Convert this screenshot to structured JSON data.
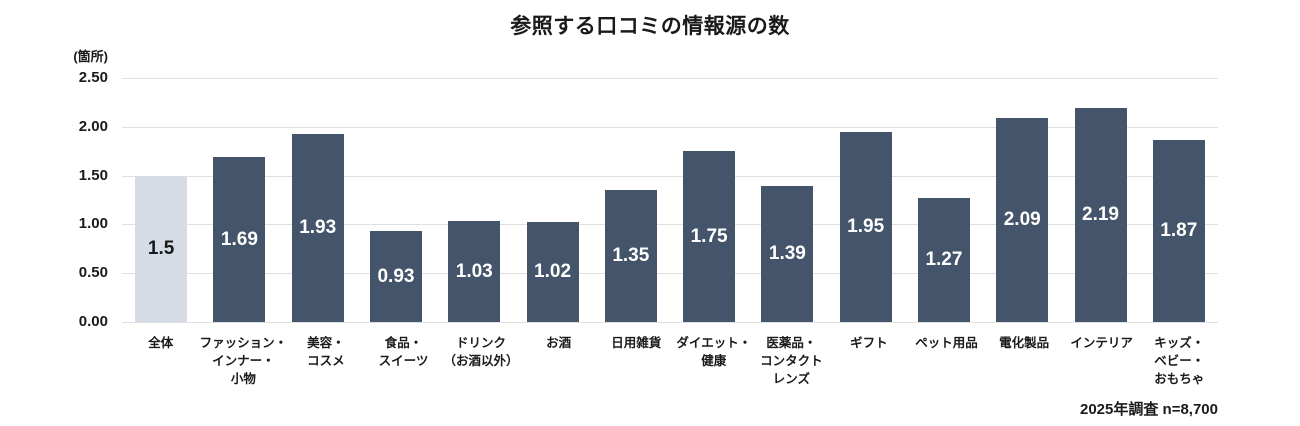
{
  "title": "参照する口コミの情報源の数",
  "footer_note": "2025年調査 n=8,700",
  "chart_data": {
    "type": "bar",
    "title": "参照する口コミの情報源の数",
    "unit_label": "(箇所)",
    "xlabel": "",
    "ylabel": "箇所",
    "ylim": [
      0,
      2.5
    ],
    "grid": "horizontal",
    "legend": false,
    "y_ticks": [
      "2.50",
      "2.00",
      "1.50",
      "1.00",
      "0.50",
      "0.00"
    ],
    "categories": [
      "全体",
      "ファッション・インナー・小物",
      "美容・コスメ",
      "食品・スイーツ",
      "ドリンク（お酒以外）",
      "お酒",
      "日用雑貨",
      "ダイエット・健康",
      "医薬品・コンタクトレンズ",
      "ギフト",
      "ペット用品",
      "電化製品",
      "インテリア",
      "キッズ・ベビー・おもちゃ"
    ],
    "category_lines": [
      [
        "全体"
      ],
      [
        "ファッション・",
        "インナー・",
        "小物"
      ],
      [
        "美容・",
        "コスメ"
      ],
      [
        "食品・",
        "スイーツ"
      ],
      [
        "ドリンク",
        "（お酒以外）"
      ],
      [
        "お酒"
      ],
      [
        "日用雑貨"
      ],
      [
        "ダイエット・",
        "健康"
      ],
      [
        "医薬品・",
        "コンタクト",
        "レンズ"
      ],
      [
        "ギフト"
      ],
      [
        "ペット用品"
      ],
      [
        "電化製品"
      ],
      [
        "インテリア"
      ],
      [
        "キッズ・",
        "ベビー・",
        "おもちゃ"
      ]
    ],
    "values": [
      1.5,
      1.69,
      1.93,
      0.93,
      1.03,
      1.02,
      1.35,
      1.75,
      1.39,
      1.95,
      1.27,
      2.09,
      2.19,
      1.87
    ],
    "value_labels": [
      "1.5",
      "1.69",
      "1.93",
      "0.93",
      "1.03",
      "1.02",
      "1.35",
      "1.75",
      "1.39",
      "1.95",
      "1.27",
      "2.09",
      "2.19",
      "1.87"
    ],
    "highlight_index": 0,
    "colors": {
      "bar": "#44546A",
      "highlight_bar": "#D6DCE5",
      "gridline": "#E0E0E0",
      "value_label_on_dark": "#FFFFFF",
      "value_label_on_light": "#1A1A1A",
      "text": "#1A1A1A",
      "background": "#FFFFFF"
    }
  }
}
